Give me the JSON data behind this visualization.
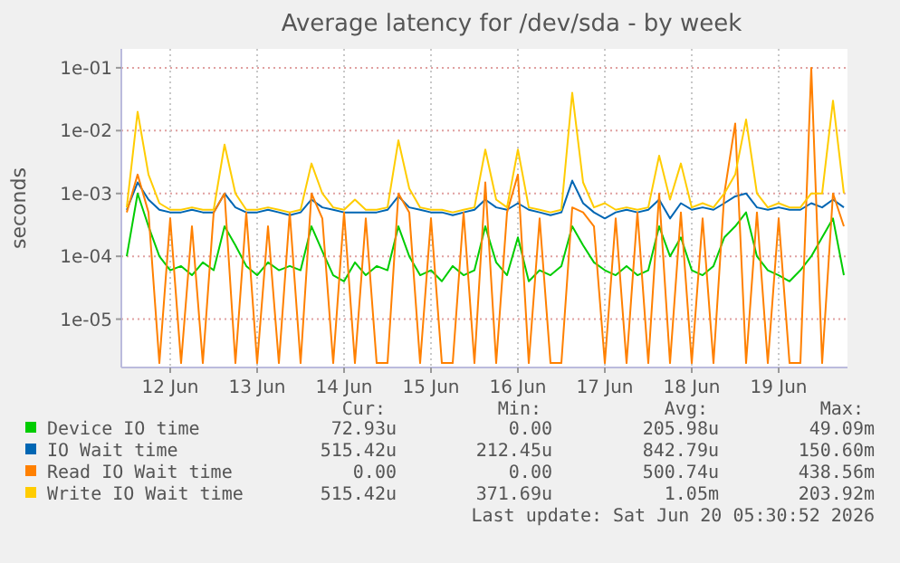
{
  "chart_data": {
    "type": "line",
    "title": "Average latency for /dev/sda - by week",
    "ylabel": "seconds",
    "log": "y",
    "grid": true,
    "legend": "bottom",
    "xlim": [
      "2026-06-11T22:30",
      "2026-06-20T07:00"
    ],
    "xticks": [
      {
        "value": "2026-06-12T12:00",
        "label": "12 Jun"
      },
      {
        "value": "2026-06-13T12:00",
        "label": "13 Jun"
      },
      {
        "value": "2026-06-14T12:00",
        "label": "14 Jun"
      },
      {
        "value": "2026-06-15T12:00",
        "label": "15 Jun"
      },
      {
        "value": "2026-06-16T12:00",
        "label": "16 Jun"
      },
      {
        "value": "2026-06-17T12:00",
        "label": "17 Jun"
      },
      {
        "value": "2026-06-18T12:00",
        "label": "18 Jun"
      },
      {
        "value": "2026-06-19T12:00",
        "label": "19 Jun"
      }
    ],
    "ylim": [
      1.7e-06,
      0.2
    ],
    "yticks": [
      {
        "value": 1e-05,
        "label": "1e-05"
      },
      {
        "value": 0.0001,
        "label": "1e-04"
      },
      {
        "value": 0.001,
        "label": "1e-03"
      },
      {
        "value": 0.01,
        "label": "1e-02"
      },
      {
        "value": 0.1,
        "label": "1e-01"
      }
    ],
    "x": [
      "2026-06-12T00:00",
      "2026-06-12T03:00",
      "2026-06-12T06:00",
      "2026-06-12T09:00",
      "2026-06-12T12:00",
      "2026-06-12T15:00",
      "2026-06-12T18:00",
      "2026-06-12T21:00",
      "2026-06-13T00:00",
      "2026-06-13T03:00",
      "2026-06-13T06:00",
      "2026-06-13T09:00",
      "2026-06-13T12:00",
      "2026-06-13T15:00",
      "2026-06-13T18:00",
      "2026-06-13T21:00",
      "2026-06-14T00:00",
      "2026-06-14T03:00",
      "2026-06-14T06:00",
      "2026-06-14T09:00",
      "2026-06-14T12:00",
      "2026-06-14T15:00",
      "2026-06-14T18:00",
      "2026-06-14T21:00",
      "2026-06-15T00:00",
      "2026-06-15T03:00",
      "2026-06-15T06:00",
      "2026-06-15T09:00",
      "2026-06-15T12:00",
      "2026-06-15T15:00",
      "2026-06-15T18:00",
      "2026-06-15T21:00",
      "2026-06-16T00:00",
      "2026-06-16T03:00",
      "2026-06-16T06:00",
      "2026-06-16T09:00",
      "2026-06-16T12:00",
      "2026-06-16T15:00",
      "2026-06-16T18:00",
      "2026-06-16T21:00",
      "2026-06-17T00:00",
      "2026-06-17T03:00",
      "2026-06-17T06:00",
      "2026-06-17T09:00",
      "2026-06-17T12:00",
      "2026-06-17T15:00",
      "2026-06-17T18:00",
      "2026-06-17T21:00",
      "2026-06-18T00:00",
      "2026-06-18T03:00",
      "2026-06-18T06:00",
      "2026-06-18T09:00",
      "2026-06-18T12:00",
      "2026-06-18T15:00",
      "2026-06-18T18:00",
      "2026-06-18T21:00",
      "2026-06-19T00:00",
      "2026-06-19T03:00",
      "2026-06-19T06:00",
      "2026-06-19T09:00",
      "2026-06-19T12:00",
      "2026-06-19T15:00",
      "2026-06-19T18:00",
      "2026-06-19T21:00",
      "2026-06-20T00:00",
      "2026-06-20T03:00",
      "2026-06-20T06:00"
    ],
    "series": [
      {
        "name": "Device IO time",
        "color": "#00cc00",
        "values": [
          0.0001,
          0.001,
          0.0003,
          0.0001,
          6e-05,
          7e-05,
          5e-05,
          8e-05,
          6e-05,
          0.0003,
          0.00015,
          7e-05,
          5e-05,
          8e-05,
          6e-05,
          7e-05,
          6e-05,
          0.0003,
          0.00012,
          5e-05,
          4e-05,
          8e-05,
          5e-05,
          7e-05,
          6e-05,
          0.0003,
          0.0001,
          5e-05,
          6e-05,
          4e-05,
          7e-05,
          5e-05,
          6e-05,
          0.0003,
          8e-05,
          5e-05,
          0.0002,
          4e-05,
          6e-05,
          5e-05,
          7e-05,
          0.0003,
          0.00015,
          8e-05,
          6e-05,
          5e-05,
          7e-05,
          5e-05,
          6e-05,
          0.0003,
          0.0001,
          0.0002,
          6e-05,
          5e-05,
          7e-05,
          0.0002,
          0.0003,
          0.0005,
          0.0001,
          6e-05,
          5e-05,
          4e-05,
          6e-05,
          0.0001,
          0.0002,
          0.0004,
          5e-05
        ]
      },
      {
        "name": "IO Wait time",
        "color": "#0066b3",
        "values": [
          0.00055,
          0.0015,
          0.0008,
          0.00055,
          0.0005,
          0.0005,
          0.00055,
          0.0005,
          0.0005,
          0.001,
          0.0006,
          0.0005,
          0.0005,
          0.00055,
          0.0005,
          0.00045,
          0.0005,
          0.0008,
          0.0006,
          0.00055,
          0.0005,
          0.0005,
          0.0005,
          0.0005,
          0.00055,
          0.0009,
          0.0006,
          0.00055,
          0.0005,
          0.0005,
          0.00045,
          0.0005,
          0.00055,
          0.0008,
          0.0006,
          0.00055,
          0.0007,
          0.00055,
          0.0005,
          0.00045,
          0.0005,
          0.0016,
          0.0007,
          0.0005,
          0.0004,
          0.0005,
          0.00055,
          0.0005,
          0.00055,
          0.0008,
          0.0004,
          0.0007,
          0.00055,
          0.0006,
          0.00055,
          0.0007,
          0.0009,
          0.001,
          0.0006,
          0.00055,
          0.0006,
          0.00055,
          0.00055,
          0.0007,
          0.0006,
          0.0008,
          0.0006
        ]
      },
      {
        "name": "Read IO Wait time",
        "color": "#ff8000",
        "values": [
          0.0005,
          0.002,
          0.0005,
          2e-06,
          0.0004,
          2e-06,
          0.0003,
          2e-06,
          0.0005,
          0.001,
          2e-06,
          0.0005,
          2e-06,
          0.0003,
          2e-06,
          0.0005,
          2e-06,
          0.001,
          0.0004,
          2e-06,
          0.0005,
          2e-06,
          0.0004,
          2e-06,
          2e-06,
          0.001,
          0.0005,
          2e-06,
          0.0004,
          2e-06,
          2e-06,
          0.0005,
          2e-06,
          0.0015,
          2e-06,
          0.0005,
          0.002,
          2e-06,
          0.0004,
          2e-06,
          2e-06,
          0.0006,
          0.0005,
          0.0003,
          2e-06,
          0.0004,
          2e-06,
          0.0005,
          2e-06,
          0.001,
          2e-06,
          0.0005,
          2e-06,
          0.0004,
          2e-06,
          0.001,
          0.013,
          2e-06,
          0.0005,
          2e-06,
          0.0004,
          2e-06,
          2e-06,
          0.1,
          2e-06,
          0.001,
          0.0003
        ]
      },
      {
        "name": "Write IO Wait time",
        "color": "#ffcc00",
        "values": [
          0.0006,
          0.02,
          0.002,
          0.0007,
          0.00055,
          0.00055,
          0.0006,
          0.00055,
          0.00055,
          0.006,
          0.001,
          0.00055,
          0.00055,
          0.0006,
          0.00055,
          0.0005,
          0.00055,
          0.003,
          0.001,
          0.0006,
          0.00055,
          0.0008,
          0.00055,
          0.00055,
          0.0006,
          0.007,
          0.0012,
          0.0006,
          0.00055,
          0.00055,
          0.0005,
          0.00055,
          0.0006,
          0.005,
          0.0008,
          0.0006,
          0.005,
          0.0006,
          0.00055,
          0.0005,
          0.00055,
          0.04,
          0.0015,
          0.0006,
          0.0007,
          0.00055,
          0.0006,
          0.00055,
          0.0006,
          0.004,
          0.0008,
          0.003,
          0.0006,
          0.0007,
          0.0006,
          0.001,
          0.002,
          0.015,
          0.001,
          0.0006,
          0.0007,
          0.0006,
          0.0006,
          0.001,
          0.001,
          0.03,
          0.001
        ]
      }
    ],
    "annotations": [
      "Cur:",
      "Min:",
      "Avg:",
      "Max:",
      "72.93u",
      "0.00",
      "205.98u",
      "49.09m",
      "515.42u",
      "212.45u",
      "842.79u",
      "150.60m",
      "0.00",
      "0.00",
      "500.74u",
      "438.56m",
      "515.42u",
      "371.69u",
      "1.05m",
      "203.92m",
      "Last update: Sat Jun 20 05:30:52 2026"
    ]
  }
}
